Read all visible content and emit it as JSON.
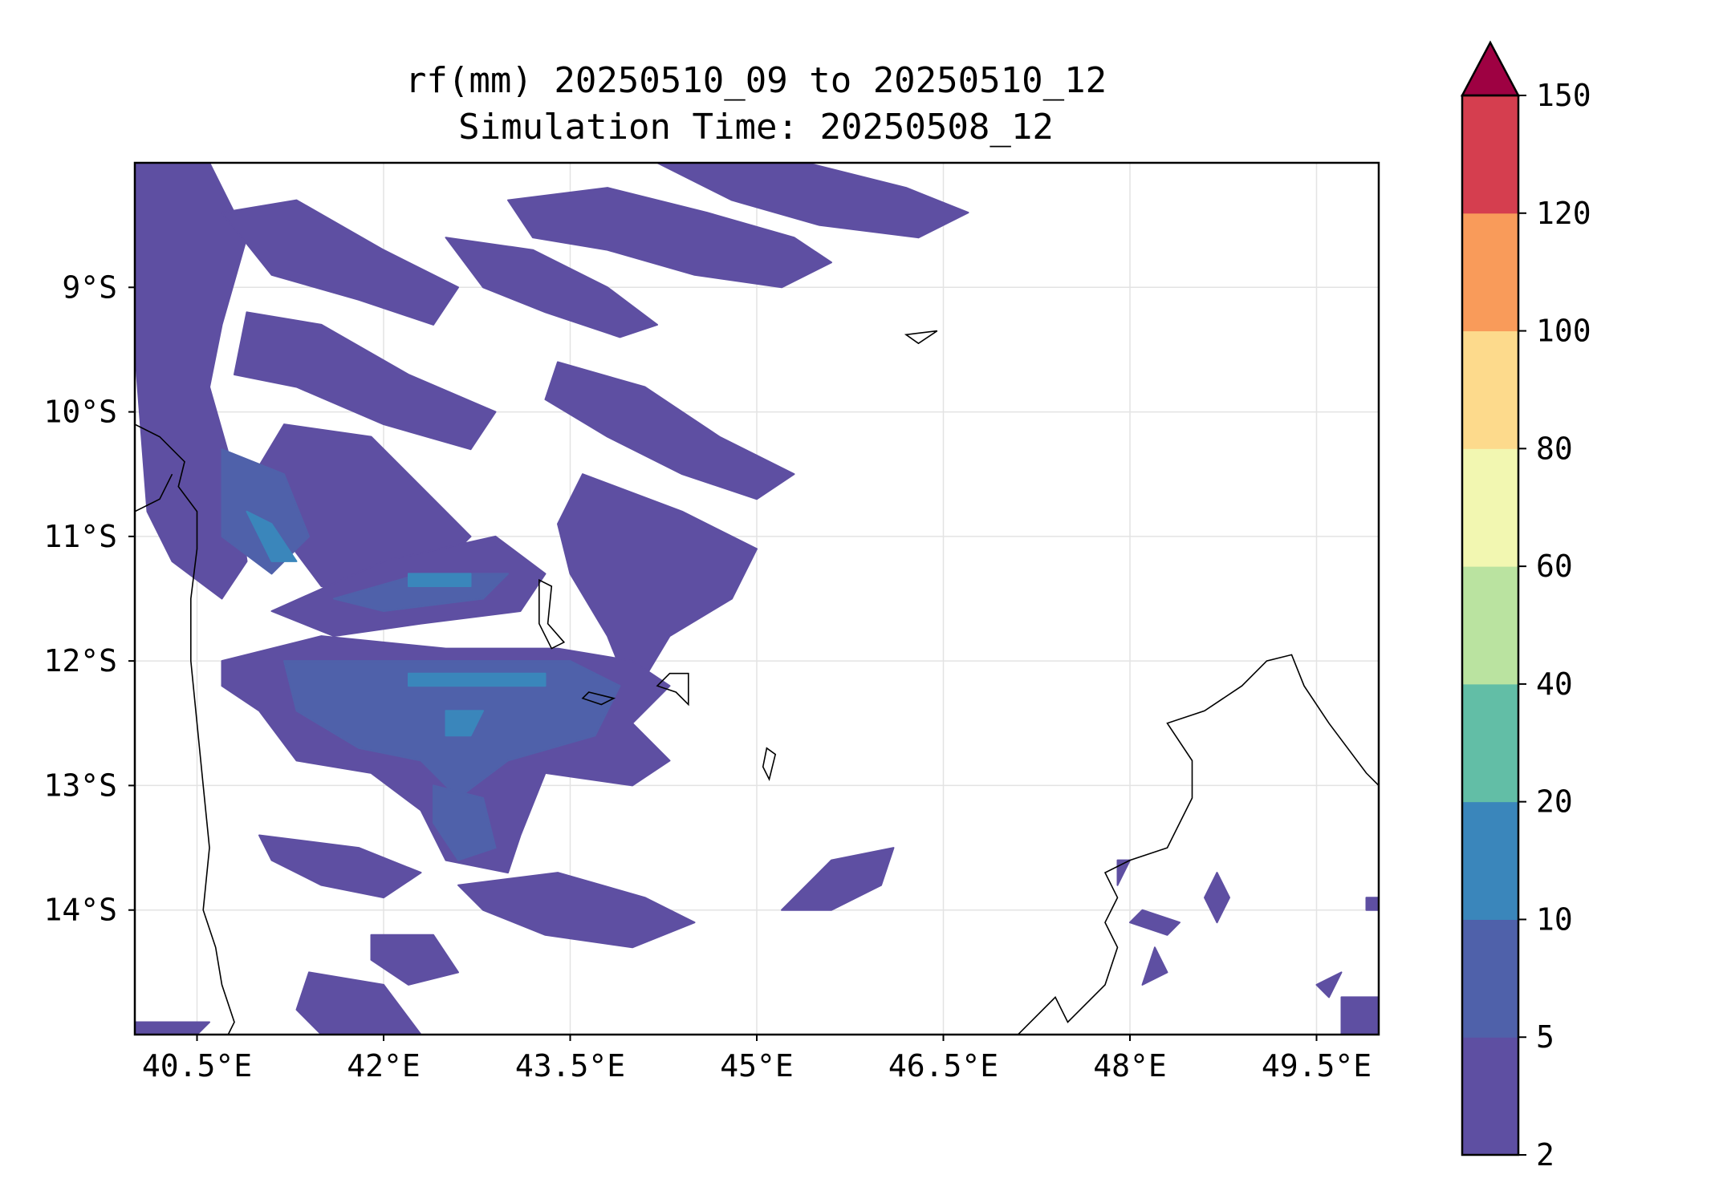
{
  "title": {
    "line1": "rf(mm) 20250510_09 to 20250510_12",
    "line2": "Simulation Time: 20250508_12"
  },
  "map": {
    "lon_range": [
      40.0,
      50.0
    ],
    "lat_range": [
      -15.0,
      -8.0
    ],
    "gridlines": true,
    "x_ticks": [
      {
        "value": 40.5,
        "label": "40.5°E"
      },
      {
        "value": 42.0,
        "label": "42°E"
      },
      {
        "value": 43.5,
        "label": "43.5°E"
      },
      {
        "value": 45.0,
        "label": "45°E"
      },
      {
        "value": 46.5,
        "label": "46.5°E"
      },
      {
        "value": 48.0,
        "label": "48°E"
      },
      {
        "value": 49.5,
        "label": "49.5°E"
      }
    ],
    "y_ticks": [
      {
        "value": -9,
        "label": "9°S"
      },
      {
        "value": -10,
        "label": "10°S"
      },
      {
        "value": -11,
        "label": "11°S"
      },
      {
        "value": -12,
        "label": "12°S"
      },
      {
        "value": -13,
        "label": "13°S"
      },
      {
        "value": -14,
        "label": "14°S"
      }
    ],
    "rain_bands": [
      {
        "level": 0,
        "pts": [
          [
            40.0,
            -8.0
          ],
          [
            40.6,
            -8.0
          ],
          [
            40.9,
            -8.6
          ],
          [
            40.7,
            -9.3
          ],
          [
            40.6,
            -9.8
          ],
          [
            40.8,
            -10.5
          ],
          [
            40.9,
            -11.2
          ],
          [
            40.7,
            -11.5
          ],
          [
            40.3,
            -11.2
          ],
          [
            40.1,
            -10.8
          ],
          [
            40.0,
            -9.5
          ]
        ]
      },
      {
        "level": 0,
        "pts": [
          [
            40.7,
            -8.4
          ],
          [
            41.3,
            -8.3
          ],
          [
            42.0,
            -8.7
          ],
          [
            42.6,
            -9.0
          ],
          [
            42.4,
            -9.3
          ],
          [
            41.8,
            -9.1
          ],
          [
            41.1,
            -8.9
          ]
        ]
      },
      {
        "level": 0,
        "pts": [
          [
            40.9,
            -9.2
          ],
          [
            41.5,
            -9.3
          ],
          [
            42.2,
            -9.7
          ],
          [
            42.9,
            -10.0
          ],
          [
            42.7,
            -10.3
          ],
          [
            42.0,
            -10.1
          ],
          [
            41.3,
            -9.8
          ],
          [
            40.8,
            -9.7
          ]
        ]
      },
      {
        "level": 0,
        "pts": [
          [
            41.2,
            -10.1
          ],
          [
            41.9,
            -10.2
          ],
          [
            42.3,
            -10.6
          ],
          [
            42.7,
            -11.0
          ],
          [
            42.4,
            -11.3
          ],
          [
            41.9,
            -11.5
          ],
          [
            41.5,
            -11.4
          ],
          [
            41.2,
            -11.0
          ],
          [
            40.9,
            -10.6
          ]
        ]
      },
      {
        "level": 0,
        "pts": [
          [
            42.5,
            -8.6
          ],
          [
            43.2,
            -8.7
          ],
          [
            43.8,
            -9.0
          ],
          [
            44.2,
            -9.3
          ],
          [
            43.9,
            -9.4
          ],
          [
            43.3,
            -9.2
          ],
          [
            42.8,
            -9.0
          ]
        ]
      },
      {
        "level": 0,
        "pts": [
          [
            43.0,
            -8.3
          ],
          [
            43.8,
            -8.2
          ],
          [
            44.6,
            -8.4
          ],
          [
            45.3,
            -8.6
          ],
          [
            45.6,
            -8.8
          ],
          [
            45.2,
            -9.0
          ],
          [
            44.5,
            -8.9
          ],
          [
            43.8,
            -8.7
          ],
          [
            43.2,
            -8.6
          ]
        ]
      },
      {
        "level": 0,
        "pts": [
          [
            44.2,
            -8.0
          ],
          [
            45.4,
            -8.0
          ],
          [
            46.2,
            -8.2
          ],
          [
            46.7,
            -8.4
          ],
          [
            46.3,
            -8.6
          ],
          [
            45.5,
            -8.5
          ],
          [
            44.8,
            -8.3
          ]
        ]
      },
      {
        "level": 0,
        "pts": [
          [
            43.4,
            -9.6
          ],
          [
            44.1,
            -9.8
          ],
          [
            44.7,
            -10.2
          ],
          [
            45.3,
            -10.5
          ],
          [
            45.0,
            -10.7
          ],
          [
            44.4,
            -10.5
          ],
          [
            43.8,
            -10.2
          ],
          [
            43.3,
            -9.9
          ]
        ]
      },
      {
        "level": 0,
        "pts": [
          [
            43.6,
            -10.5
          ],
          [
            44.4,
            -10.8
          ],
          [
            45.0,
            -11.1
          ],
          [
            44.8,
            -11.5
          ],
          [
            44.3,
            -11.8
          ],
          [
            44.0,
            -12.3
          ],
          [
            43.8,
            -11.8
          ],
          [
            43.5,
            -11.3
          ],
          [
            43.4,
            -10.9
          ]
        ]
      },
      {
        "level": 0,
        "pts": [
          [
            41.1,
            -11.6
          ],
          [
            42.0,
            -11.2
          ],
          [
            42.9,
            -11.0
          ],
          [
            43.3,
            -11.3
          ],
          [
            43.1,
            -11.6
          ],
          [
            42.3,
            -11.7
          ],
          [
            41.6,
            -11.8
          ]
        ]
      },
      {
        "level": 0,
        "pts": [
          [
            40.7,
            -12.0
          ],
          [
            41.5,
            -11.8
          ],
          [
            42.5,
            -11.9
          ],
          [
            43.4,
            -11.9
          ],
          [
            44.0,
            -12.0
          ],
          [
            44.3,
            -12.2
          ],
          [
            44.0,
            -12.5
          ],
          [
            44.3,
            -12.8
          ],
          [
            44.0,
            -13.0
          ],
          [
            43.3,
            -12.9
          ],
          [
            43.1,
            -13.4
          ],
          [
            43.0,
            -13.7
          ],
          [
            42.5,
            -13.6
          ],
          [
            42.3,
            -13.2
          ],
          [
            41.9,
            -12.9
          ],
          [
            41.3,
            -12.8
          ],
          [
            41.0,
            -12.4
          ],
          [
            40.7,
            -12.2
          ]
        ]
      },
      {
        "level": 0,
        "pts": [
          [
            41.0,
            -13.4
          ],
          [
            41.8,
            -13.5
          ],
          [
            42.3,
            -13.7
          ],
          [
            42.0,
            -13.9
          ],
          [
            41.5,
            -13.8
          ],
          [
            41.1,
            -13.6
          ]
        ]
      },
      {
        "level": 0,
        "pts": [
          [
            42.6,
            -13.8
          ],
          [
            43.4,
            -13.7
          ],
          [
            44.1,
            -13.9
          ],
          [
            44.5,
            -14.1
          ],
          [
            44.0,
            -14.3
          ],
          [
            43.3,
            -14.2
          ],
          [
            42.8,
            -14.0
          ]
        ]
      },
      {
        "level": 0,
        "pts": [
          [
            45.2,
            -14.0
          ],
          [
            45.6,
            -13.6
          ],
          [
            46.1,
            -13.5
          ],
          [
            46.0,
            -13.8
          ],
          [
            45.6,
            -14.0
          ]
        ]
      },
      {
        "level": 0,
        "pts": [
          [
            41.9,
            -14.2
          ],
          [
            42.4,
            -14.2
          ],
          [
            42.6,
            -14.5
          ],
          [
            42.2,
            -14.6
          ],
          [
            41.9,
            -14.4
          ]
        ]
      },
      {
        "level": 0,
        "pts": [
          [
            41.4,
            -14.5
          ],
          [
            42.0,
            -14.6
          ],
          [
            42.3,
            -15.0
          ],
          [
            41.5,
            -15.0
          ],
          [
            41.3,
            -14.8
          ]
        ]
      },
      {
        "level": 0,
        "pts": [
          [
            40.0,
            -14.9
          ],
          [
            40.6,
            -14.9
          ],
          [
            40.5,
            -15.0
          ],
          [
            40.0,
            -15.0
          ]
        ]
      },
      {
        "level": 0,
        "pts": [
          [
            48.1,
            -14.0
          ],
          [
            48.4,
            -14.1
          ],
          [
            48.3,
            -14.2
          ],
          [
            48.0,
            -14.1
          ]
        ]
      },
      {
        "level": 0,
        "pts": [
          [
            48.7,
            -13.7
          ],
          [
            48.8,
            -13.9
          ],
          [
            48.7,
            -14.1
          ],
          [
            48.6,
            -13.9
          ]
        ]
      },
      {
        "level": 0,
        "pts": [
          [
            48.2,
            -14.3
          ],
          [
            48.3,
            -14.5
          ],
          [
            48.1,
            -14.6
          ]
        ]
      },
      {
        "level": 0,
        "pts": [
          [
            49.7,
            -14.7
          ],
          [
            50.0,
            -14.7
          ],
          [
            50.0,
            -15.0
          ],
          [
            49.7,
            -15.0
          ]
        ]
      },
      {
        "level": 0,
        "pts": [
          [
            49.9,
            -13.9
          ],
          [
            50.0,
            -13.9
          ],
          [
            50.0,
            -14.0
          ],
          [
            49.9,
            -14.0
          ]
        ]
      },
      {
        "level": 0,
        "pts": [
          [
            49.5,
            -14.6
          ],
          [
            49.7,
            -14.5
          ],
          [
            49.6,
            -14.7
          ]
        ]
      },
      {
        "level": 0,
        "pts": [
          [
            47.9,
            -13.6
          ],
          [
            48.0,
            -13.6
          ],
          [
            47.9,
            -13.8
          ]
        ]
      },
      {
        "level": 1,
        "pts": [
          [
            40.7,
            -10.3
          ],
          [
            41.2,
            -10.5
          ],
          [
            41.4,
            -11.0
          ],
          [
            41.1,
            -11.3
          ],
          [
            40.7,
            -11.0
          ]
        ]
      },
      {
        "level": 1,
        "pts": [
          [
            41.6,
            -11.5
          ],
          [
            42.3,
            -11.3
          ],
          [
            43.0,
            -11.3
          ],
          [
            42.8,
            -11.5
          ],
          [
            42.0,
            -11.6
          ]
        ]
      },
      {
        "level": 1,
        "pts": [
          [
            41.2,
            -12.0
          ],
          [
            42.5,
            -12.0
          ],
          [
            43.5,
            -12.0
          ],
          [
            43.9,
            -12.2
          ],
          [
            43.7,
            -12.6
          ],
          [
            43.0,
            -12.8
          ],
          [
            42.6,
            -13.1
          ],
          [
            42.3,
            -12.8
          ],
          [
            41.8,
            -12.7
          ],
          [
            41.3,
            -12.4
          ]
        ]
      },
      {
        "level": 1,
        "pts": [
          [
            42.4,
            -13.0
          ],
          [
            42.8,
            -13.1
          ],
          [
            42.9,
            -13.5
          ],
          [
            42.6,
            -13.6
          ],
          [
            42.4,
            -13.3
          ]
        ]
      },
      {
        "level": 2,
        "pts": [
          [
            40.9,
            -10.8
          ],
          [
            41.1,
            -10.9
          ],
          [
            41.3,
            -11.2
          ],
          [
            41.1,
            -11.2
          ]
        ]
      },
      {
        "level": 2,
        "pts": [
          [
            42.2,
            -11.3
          ],
          [
            42.7,
            -11.3
          ],
          [
            42.7,
            -11.4
          ],
          [
            42.2,
            -11.4
          ]
        ]
      },
      {
        "level": 2,
        "pts": [
          [
            42.2,
            -12.1
          ],
          [
            43.3,
            -12.1
          ],
          [
            43.3,
            -12.2
          ],
          [
            42.2,
            -12.2
          ]
        ]
      },
      {
        "level": 2,
        "pts": [
          [
            42.5,
            -12.4
          ],
          [
            42.8,
            -12.4
          ],
          [
            42.7,
            -12.6
          ],
          [
            42.5,
            -12.6
          ]
        ]
      }
    ],
    "islands": [
      [
        [
          43.25,
          -11.35
        ],
        [
          43.35,
          -11.4
        ],
        [
          43.32,
          -11.7
        ],
        [
          43.45,
          -11.85
        ],
        [
          43.35,
          -11.9
        ],
        [
          43.25,
          -11.7
        ]
      ],
      [
        [
          43.65,
          -12.25
        ],
        [
          43.85,
          -12.3
        ],
        [
          43.75,
          -12.35
        ],
        [
          43.6,
          -12.3
        ]
      ],
      [
        [
          44.3,
          -12.1
        ],
        [
          44.45,
          -12.1
        ],
        [
          44.45,
          -12.35
        ],
        [
          44.35,
          -12.25
        ],
        [
          44.2,
          -12.2
        ]
      ],
      [
        [
          45.08,
          -12.7
        ],
        [
          45.15,
          -12.75
        ],
        [
          45.1,
          -12.95
        ],
        [
          45.05,
          -12.85
        ]
      ],
      [
        [
          46.2,
          -9.38
        ],
        [
          46.45,
          -9.35
        ],
        [
          46.3,
          -9.45
        ]
      ]
    ],
    "coastlines": [
      [
        [
          40.0,
          -10.1
        ],
        [
          40.2,
          -10.2
        ],
        [
          40.4,
          -10.4
        ],
        [
          40.35,
          -10.6
        ],
        [
          40.5,
          -10.8
        ],
        [
          40.5,
          -11.1
        ],
        [
          40.45,
          -11.5
        ],
        [
          40.45,
          -12.0
        ],
        [
          40.5,
          -12.5
        ],
        [
          40.55,
          -13.0
        ],
        [
          40.6,
          -13.5
        ],
        [
          40.55,
          -14.0
        ],
        [
          40.65,
          -14.3
        ],
        [
          40.7,
          -14.6
        ],
        [
          40.8,
          -14.9
        ],
        [
          40.75,
          -15.0
        ]
      ],
      [
        [
          40.0,
          -10.8
        ],
        [
          40.2,
          -10.7
        ],
        [
          40.3,
          -10.5
        ]
      ],
      [
        [
          47.1,
          -15.0
        ],
        [
          47.4,
          -14.7
        ],
        [
          47.5,
          -14.9
        ],
        [
          47.8,
          -14.6
        ],
        [
          47.9,
          -14.3
        ],
        [
          47.8,
          -14.1
        ],
        [
          47.9,
          -13.9
        ],
        [
          47.8,
          -13.7
        ],
        [
          48.0,
          -13.6
        ],
        [
          48.3,
          -13.5
        ],
        [
          48.5,
          -13.1
        ],
        [
          48.5,
          -12.8
        ],
        [
          48.3,
          -12.5
        ],
        [
          48.6,
          -12.4
        ],
        [
          48.9,
          -12.2
        ],
        [
          49.1,
          -12.0
        ],
        [
          49.3,
          -11.95
        ],
        [
          49.4,
          -12.2
        ],
        [
          49.6,
          -12.5
        ],
        [
          49.9,
          -12.9
        ],
        [
          50.0,
          -13.0
        ]
      ]
    ]
  },
  "colorbar": {
    "levels": [
      2,
      5,
      10,
      20,
      40,
      60,
      80,
      100,
      120,
      150
    ],
    "tick_labels": [
      "2",
      "5",
      "10",
      "20",
      "40",
      "60",
      "80",
      "100",
      "120",
      "150"
    ],
    "colors": [
      "#5e4fa2",
      "#4f61aa",
      "#3a86bb",
      "#62bea6",
      "#bae3a0",
      "#f2f7b1",
      "#fdda8c",
      "#f99b5a",
      "#d53e4f"
    ],
    "extend_color": "#9e0142",
    "extend": "max"
  }
}
